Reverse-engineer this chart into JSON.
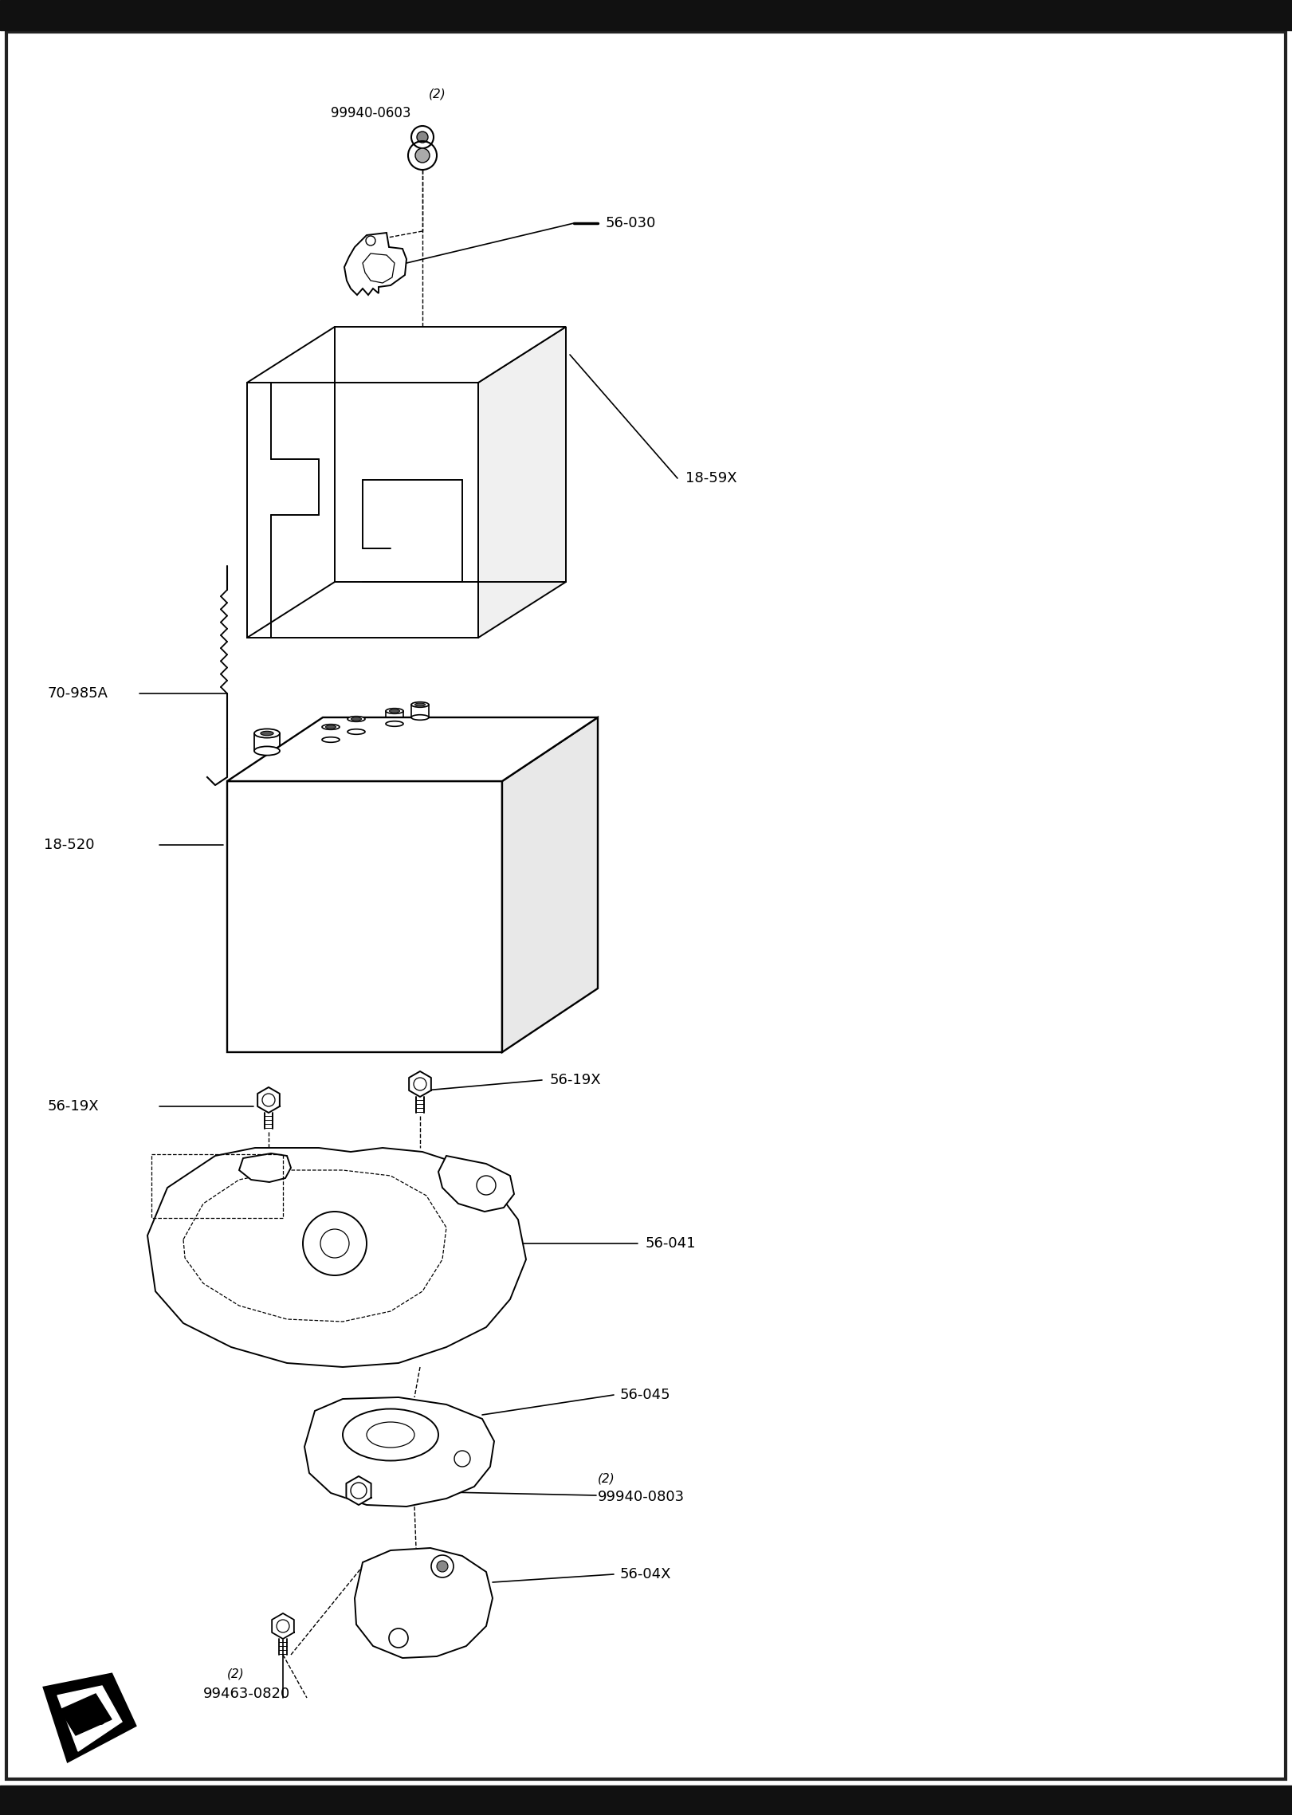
{
  "bg_color": "#ffffff",
  "line_color": "#000000",
  "header_bg": "#111111",
  "footer_bg": "#111111",
  "lw": 1.4,
  "parts_labels": {
    "99940_0603": "(2)\n99940-0603",
    "56_030": "56-030",
    "18_59X": "18-59X",
    "70_985A": "70-985A",
    "18_520": "18-520",
    "56_19X_L": "56-19X",
    "56_19X_R": "56-19X",
    "56_041": "56-041",
    "56_045": "56-045",
    "99940_0803": "(2)\n99940-0803",
    "56_04X": "56-04X",
    "99463_0820": "(2)\n99463-0820"
  }
}
